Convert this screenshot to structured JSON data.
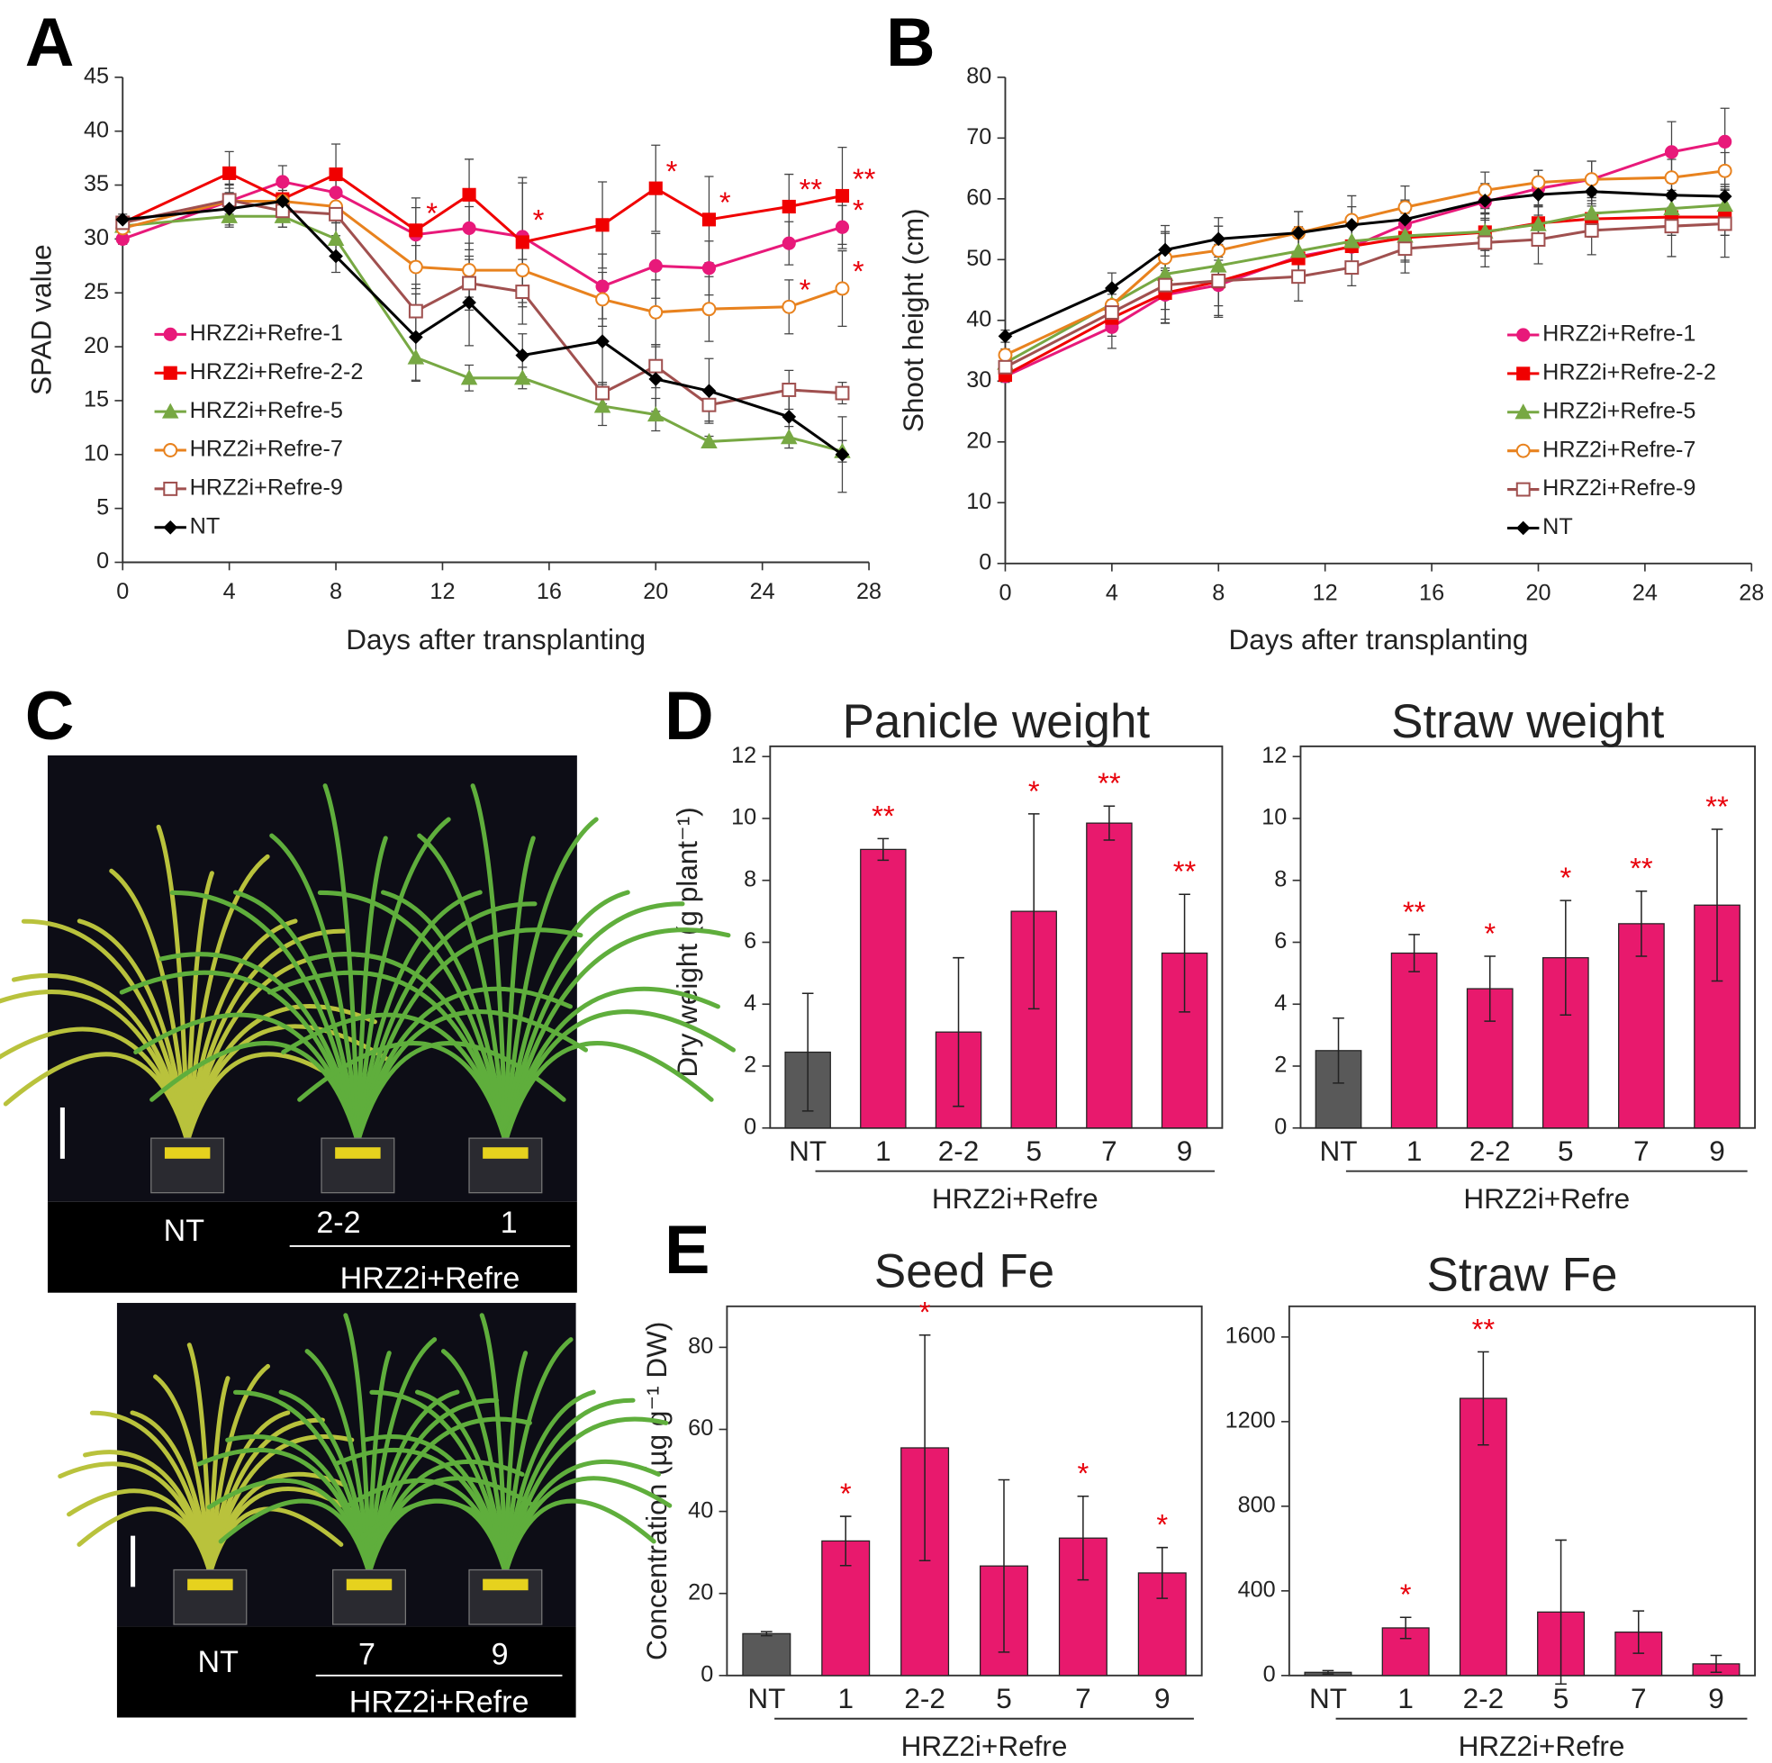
{
  "panel_labels": [
    "A",
    "B",
    "C",
    "D",
    "E"
  ],
  "chart_data": [
    {
      "type": "line",
      "y_label": "SPAD value",
      "x_label": "Days after transplanting",
      "x": [
        0,
        4,
        6,
        8,
        11,
        13,
        15,
        18,
        20,
        22,
        25,
        27
      ],
      "xlim": [
        0,
        28
      ],
      "xticks": [
        0,
        4,
        8,
        12,
        16,
        20,
        24,
        28
      ],
      "ylim": [
        0,
        45
      ],
      "yticks": [
        0,
        5,
        10,
        15,
        20,
        25,
        30,
        35,
        40,
        45
      ],
      "legend": "center-left",
      "significance_color": "#e8000b",
      "series": [
        {
          "name": "HRZ2i+Refre-1",
          "color": "#e8197a",
          "marker": "circle",
          "values": [
            30,
            33.5,
            35.3,
            34.3,
            30.4,
            31,
            30.2,
            25.6,
            27.5,
            27.3,
            29.6,
            31.1
          ],
          "errors": [
            0.5,
            1.5,
            1.5,
            1.5,
            2.5,
            2,
            5,
            3,
            3,
            2.5,
            2,
            2
          ],
          "significance": [
            null,
            null,
            null,
            null,
            null,
            null,
            "*",
            null,
            null,
            null,
            null,
            "*"
          ]
        },
        {
          "name": "HRZ2i+Refre-2-2",
          "color": "#f00000",
          "marker": "square",
          "values": [
            31.5,
            36.1,
            33.7,
            36,
            30.8,
            34.1,
            29.7,
            31.3,
            34.7,
            31.8,
            33,
            34
          ],
          "errors": [
            0.5,
            2,
            2,
            2.8,
            3,
            3.3,
            6,
            4,
            4,
            4,
            3,
            4.5
          ],
          "significance": [
            null,
            null,
            null,
            null,
            "*",
            null,
            null,
            null,
            "*",
            "*",
            "**",
            "**"
          ]
        },
        {
          "name": "HRZ2i+Refre-5",
          "color": "#77a843",
          "marker": "triangle",
          "values": [
            31.2,
            32.1,
            32.1,
            30,
            19,
            17.1,
            17.1,
            14.5,
            13.7,
            11.2,
            11.6,
            10.3
          ],
          "errors": [
            0.5,
            1,
            1,
            1.5,
            2.2,
            1.2,
            1,
            1.8,
            1.5,
            0.5,
            1,
            1
          ]
        },
        {
          "name": "HRZ2i+Refre-7",
          "color": "#e8821e",
          "marker": "open-circle",
          "values": [
            31,
            33.5,
            33.5,
            33,
            27.4,
            27.1,
            27.1,
            24.4,
            23.2,
            23.5,
            23.7,
            25.4
          ],
          "errors": [
            0.5,
            1.2,
            1,
            1.5,
            2,
            2.5,
            3,
            2.5,
            3,
            3,
            2.5,
            3.5
          ],
          "significance": [
            null,
            null,
            null,
            null,
            null,
            null,
            null,
            null,
            null,
            null,
            "*",
            "*"
          ]
        },
        {
          "name": "HRZ2i+Refre-9",
          "color": "#a0504f",
          "marker": "open-square",
          "values": [
            31.5,
            33.6,
            32.6,
            32.3,
            23.3,
            25.9,
            25.1,
            15.7,
            18.2,
            14.6,
            16,
            15.7
          ],
          "errors": [
            0.5,
            1.5,
            1.5,
            2,
            2.5,
            2.5,
            3,
            1,
            2,
            1.5,
            1.8,
            1
          ]
        },
        {
          "name": "NT",
          "color": "#000000",
          "marker": "diamond",
          "values": [
            31.8,
            32.8,
            33.5,
            28.4,
            20.9,
            24.1,
            19.2,
            20.5,
            17,
            15.9,
            13.5,
            10
          ],
          "errors": [
            0.5,
            1.5,
            1.5,
            1.5,
            4,
            4,
            2,
            4,
            3,
            3,
            2,
            3.5
          ]
        }
      ]
    },
    {
      "type": "line",
      "y_label": "Shoot height (cm)",
      "x_label": "Days after transplanting",
      "x": [
        0,
        4,
        6,
        8,
        11,
        13,
        15,
        18,
        20,
        22,
        25,
        27
      ],
      "xlim": [
        0,
        28
      ],
      "xticks": [
        0,
        4,
        8,
        12,
        16,
        20,
        24,
        28
      ],
      "ylim": [
        0,
        80
      ],
      "yticks": [
        0,
        10,
        20,
        30,
        40,
        50,
        60,
        70,
        80
      ],
      "legend": "center-right",
      "series": [
        {
          "name": "HRZ2i+Refre-1",
          "color": "#e8197a",
          "marker": "circle",
          "values": [
            30.8,
            38.9,
            44.2,
            45.8,
            50.5,
            52.1,
            55.8,
            59.5,
            61.7,
            63.2,
            67.7,
            69.4
          ],
          "errors": [
            1,
            3.5,
            4,
            5,
            4,
            4,
            4,
            3,
            3,
            3,
            5,
            5.5
          ]
        },
        {
          "name": "HRZ2i+Refre-2-2",
          "color": "#f00000",
          "marker": "square",
          "values": [
            31,
            40.4,
            44.5,
            46.4,
            50.2,
            52.2,
            53.6,
            54.5,
            56,
            56.7,
            57,
            57
          ],
          "errors": [
            1,
            3,
            5,
            4,
            4,
            4,
            4,
            3,
            3,
            3,
            3,
            3
          ]
        },
        {
          "name": "HRZ2i+Refre-5",
          "color": "#77a843",
          "marker": "triangle",
          "values": [
            33,
            42.7,
            47.6,
            49,
            51.4,
            53,
            53.9,
            54.6,
            55.8,
            57.6,
            58.4,
            59
          ],
          "errors": [
            1,
            3,
            8,
            4,
            4,
            4,
            4,
            4,
            3,
            3,
            3,
            3
          ]
        },
        {
          "name": "HRZ2i+Refre-7",
          "color": "#e8821e",
          "marker": "open-circle",
          "values": [
            34.3,
            42.5,
            50.3,
            51.5,
            54.4,
            56.5,
            58.6,
            61.4,
            62.7,
            63.2,
            63.5,
            64.6
          ],
          "errors": [
            1,
            3,
            4,
            4,
            3.5,
            4,
            3.5,
            3,
            2,
            3,
            3,
            3
          ]
        },
        {
          "name": "HRZ2i+Refre-9",
          "color": "#a0504f",
          "marker": "open-square",
          "values": [
            32.3,
            41.3,
            45.8,
            46.5,
            47.2,
            48.7,
            51.8,
            52.8,
            53.3,
            54.8,
            55.5,
            55.9
          ],
          "errors": [
            1,
            3,
            4,
            6,
            4,
            3,
            4,
            4,
            4,
            4,
            5,
            5.5
          ]
        },
        {
          "name": "NT",
          "color": "#000000",
          "marker": "diamond",
          "values": [
            37.4,
            45.3,
            51.6,
            53.4,
            54.4,
            55.7,
            56.6,
            59.7,
            60.7,
            61.2,
            60.6,
            60.4
          ],
          "errors": [
            1,
            2.5,
            3,
            3.5,
            3.5,
            3,
            3,
            2,
            2,
            2,
            2,
            2
          ]
        }
      ]
    },
    {
      "type": "bar",
      "title": "Panicle weight",
      "y_label": "Dry weight (g plant⁻¹)",
      "categories": [
        "NT",
        "1",
        "2-2",
        "5",
        "7",
        "9"
      ],
      "group_label": "HRZ2i+Refre",
      "values": [
        2.45,
        9.0,
        3.1,
        7.0,
        9.85,
        5.65
      ],
      "errors": [
        1.9,
        0.35,
        2.4,
        3.15,
        0.55,
        1.9
      ],
      "significance": [
        null,
        "**",
        null,
        "*",
        "**",
        "**"
      ],
      "significance_color": "#e8000b",
      "colors": [
        "#595959",
        "#e8196d",
        "#e8196d",
        "#e8196d",
        "#e8196d",
        "#e8196d"
      ],
      "ylim": [
        0,
        12
      ],
      "yticks": [
        0,
        2,
        4,
        6,
        8,
        10,
        12
      ]
    },
    {
      "type": "bar",
      "title": "Straw weight",
      "categories": [
        "NT",
        "1",
        "2-2",
        "5",
        "7",
        "9"
      ],
      "group_label": "HRZ2i+Refre",
      "values": [
        2.5,
        5.65,
        4.5,
        5.5,
        6.6,
        7.2
      ],
      "errors": [
        1.05,
        0.6,
        1.05,
        1.85,
        1.05,
        2.45
      ],
      "significance": [
        null,
        "**",
        "*",
        "*",
        "**",
        "**"
      ],
      "significance_color": "#e8000b",
      "colors": [
        "#595959",
        "#e8196d",
        "#e8196d",
        "#e8196d",
        "#e8196d",
        "#e8196d"
      ],
      "ylim": [
        0,
        12
      ],
      "yticks": [
        0,
        2,
        4,
        6,
        8,
        10,
        12
      ]
    },
    {
      "type": "bar",
      "title": "Seed Fe",
      "y_label": "Concentration (µg g⁻¹ DW)",
      "categories": [
        "NT",
        "1",
        "2-2",
        "5",
        "7",
        "9"
      ],
      "group_label": "HRZ2i+Refre",
      "values": [
        10.2,
        32.8,
        55.5,
        26.7,
        33.5,
        25
      ],
      "errors": [
        0.5,
        6,
        27.5,
        21,
        10.2,
        6.2
      ],
      "significance": [
        null,
        "*",
        "*",
        null,
        "*",
        "*"
      ],
      "significance_color": "#e8000b",
      "colors": [
        "#595959",
        "#e8196d",
        "#e8196d",
        "#e8196d",
        "#e8196d",
        "#e8196d"
      ],
      "ylim": [
        0,
        90
      ],
      "yticks": [
        0,
        20,
        40,
        60,
        80
      ]
    },
    {
      "type": "bar",
      "title": "Straw Fe",
      "categories": [
        "NT",
        "1",
        "2-2",
        "5",
        "7",
        "9"
      ],
      "group_label": "HRZ2i+Refre",
      "values": [
        15,
        225,
        1310,
        300,
        205,
        55
      ],
      "errors": [
        8,
        50,
        220,
        340,
        100,
        40
      ],
      "significance": [
        null,
        "*",
        "**",
        null,
        null,
        null
      ],
      "significance_color": "#e8000b",
      "colors": [
        "#595959",
        "#e8196d",
        "#e8196d",
        "#e8196d",
        "#e8196d",
        "#e8196d"
      ],
      "ylim": [
        0,
        1745
      ],
      "yticks": [
        0,
        400,
        800,
        1200,
        1600
      ]
    }
  ],
  "photos": [
    {
      "labels": [
        "NT",
        "2-2",
        "1"
      ],
      "group_label": "HRZ2i+Refre"
    },
    {
      "labels": [
        "NT",
        "7",
        "9"
      ],
      "group_label": "HRZ2i+Refre"
    }
  ]
}
